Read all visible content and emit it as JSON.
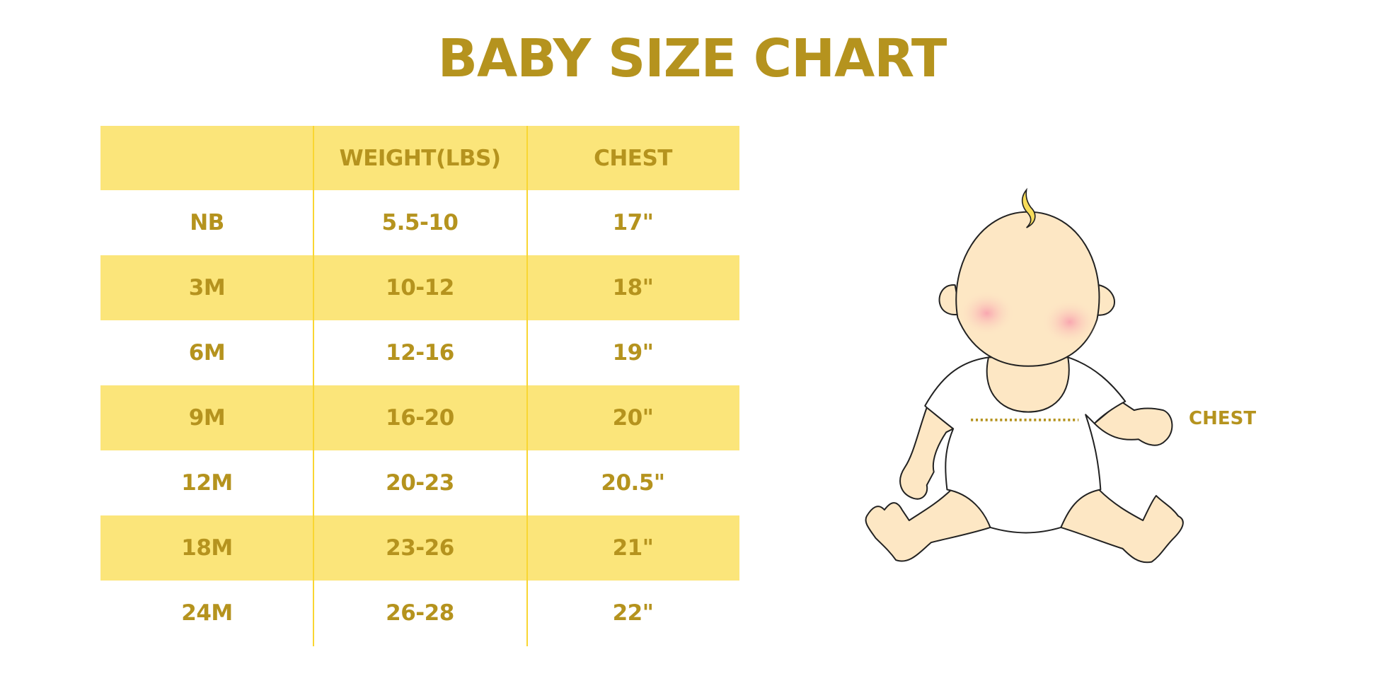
{
  "title": "BABY SIZE CHART",
  "table": {
    "headers": [
      "",
      "WEIGHT(LBS)",
      "CHEST"
    ],
    "rows": [
      [
        "NB",
        "5.5-10",
        "17\""
      ],
      [
        "3M",
        "10-12",
        "18\""
      ],
      [
        "6M",
        "12-16",
        "19\""
      ],
      [
        "9M",
        "16-20",
        "20\""
      ],
      [
        "12M",
        "20-23",
        "20.5\""
      ],
      [
        "18M",
        "23-26",
        "21\""
      ],
      [
        "24M",
        "26-28",
        "22\""
      ]
    ]
  },
  "illustration": {
    "chest_label": "CHEST"
  },
  "colors": {
    "text": "#B5931E",
    "band": "#FBE57A",
    "divider": "#F9D632"
  }
}
